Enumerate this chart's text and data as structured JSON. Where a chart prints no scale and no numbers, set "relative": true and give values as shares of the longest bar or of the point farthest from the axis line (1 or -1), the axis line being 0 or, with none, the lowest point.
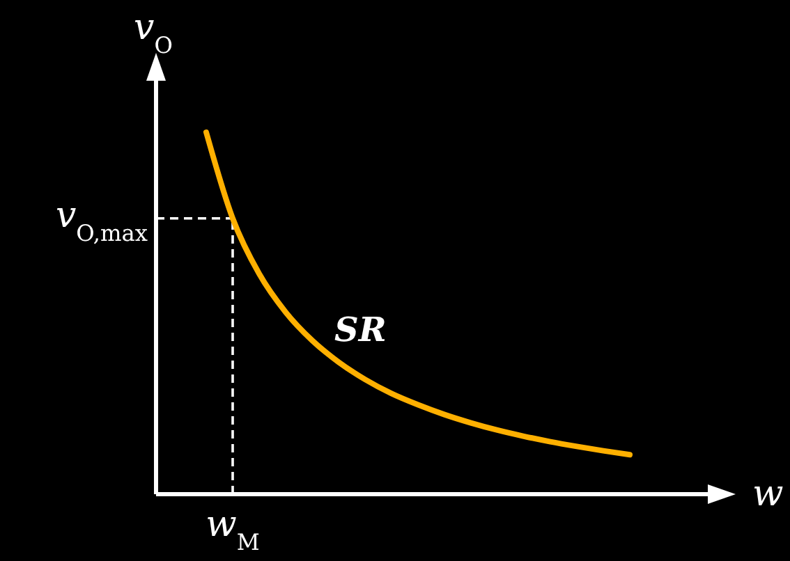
{
  "chart_data": {
    "type": "line",
    "relative": true,
    "categories": [
      null,
      null,
      null,
      null,
      null,
      null,
      null,
      null,
      null,
      null,
      null,
      null,
      null,
      null,
      null,
      null,
      null
    ],
    "series": [
      {
        "color": "#ffb000",
        "values": [
          1,
          0.762,
          0.609,
          0.503,
          0.425,
          0.365,
          0.317,
          0.278,
          0.247,
          0.22,
          0.197,
          0.177,
          0.16,
          0.145,
          0.132,
          0.12,
          0.109
        ]
      }
    ],
    "xlabel": "w",
    "ylabel": "v$_{O}$",
    "annotations": [
      "SR",
      "w$_{M}$"
    ],
    "ref_lines": [
      {
        "axis": "y",
        "value": 0.762,
        "label": "v$_{O,max}$",
        "line_style": "dashed",
        "color": "#ffffff"
      }
    ]
  }
}
